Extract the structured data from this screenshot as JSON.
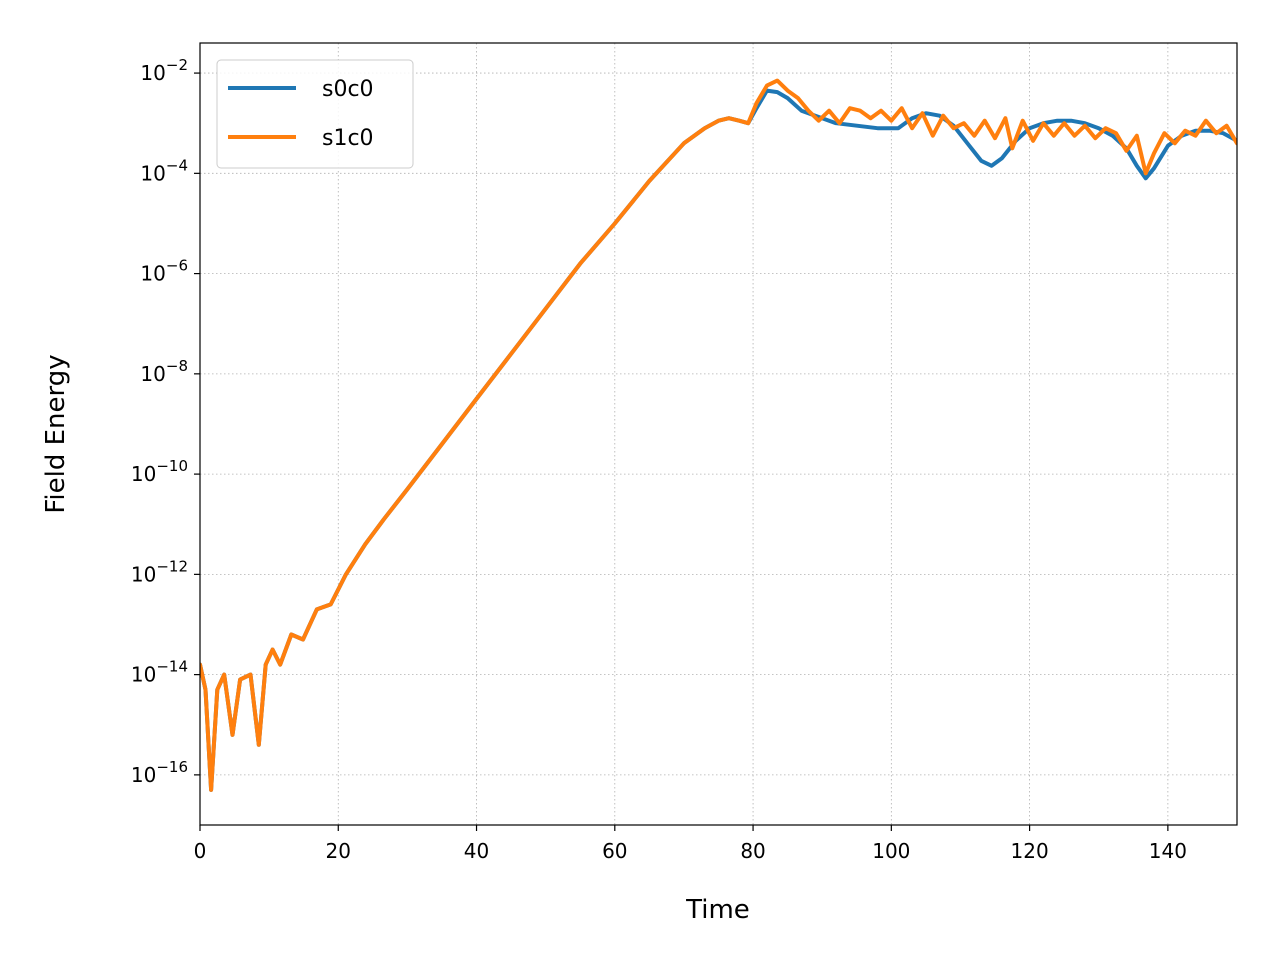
{
  "chart_data": {
    "type": "line",
    "title": "",
    "xlabel": "Time",
    "ylabel": "Field Energy",
    "xlim": [
      0,
      150
    ],
    "ylim_log10": [
      -17,
      -1.4
    ],
    "yscale": "log",
    "grid": true,
    "legend_position": "top-left",
    "x_ticks": [
      {
        "value": 0,
        "label": "0"
      },
      {
        "value": 20,
        "label": "20"
      },
      {
        "value": 40,
        "label": "40"
      },
      {
        "value": 60,
        "label": "60"
      },
      {
        "value": 80,
        "label": "80"
      },
      {
        "value": 100,
        "label": "100"
      },
      {
        "value": 120,
        "label": "120"
      },
      {
        "value": 140,
        "label": "140"
      }
    ],
    "y_ticks": [
      {
        "exp": -16,
        "base": "10",
        "sup": "−16"
      },
      {
        "exp": -14,
        "base": "10",
        "sup": "−14"
      },
      {
        "exp": -12,
        "base": "10",
        "sup": "−12"
      },
      {
        "exp": -10,
        "base": "10",
        "sup": "−10"
      },
      {
        "exp": -8,
        "base": "10",
        "sup": "−8"
      },
      {
        "exp": -6,
        "base": "10",
        "sup": "−6"
      },
      {
        "exp": -4,
        "base": "10",
        "sup": "−4"
      },
      {
        "exp": -2,
        "base": "10",
        "sup": "−2"
      }
    ],
    "series": [
      {
        "name": "s0c0",
        "color": "#1f77b4",
        "x": [
          0,
          0.8,
          1.6,
          2.5,
          3.5,
          4.7,
          5.8,
          7.3,
          8.5,
          9.5,
          10.5,
          11.6,
          13.2,
          14.9,
          16.9,
          18.9,
          21.1,
          23.9,
          26.6,
          30,
          35,
          40,
          45,
          50,
          55,
          60,
          65,
          70,
          73,
          75,
          76.5,
          78,
          79.3,
          80.5,
          82,
          83.5,
          85,
          87,
          89,
          92,
          95,
          98,
          101,
          103,
          105,
          107,
          109,
          111,
          113,
          114.5,
          116,
          118,
          120,
          122,
          124,
          126,
          128,
          130,
          132,
          134,
          135.5,
          136.8,
          138,
          140,
          142,
          144,
          146,
          148,
          150
        ],
        "y_log10": [
          -13.8,
          -14.3,
          -16.3,
          -14.3,
          -14.0,
          -15.2,
          -14.1,
          -14.0,
          -15.4,
          -13.8,
          -13.5,
          -13.8,
          -13.2,
          -13.3,
          -12.7,
          -12.6,
          -12.0,
          -11.4,
          -10.9,
          -10.3,
          -9.4,
          -8.5,
          -7.6,
          -6.7,
          -5.8,
          -5.0,
          -4.15,
          -3.4,
          -3.1,
          -2.95,
          -2.9,
          -2.95,
          -3.0,
          -2.7,
          -2.35,
          -2.38,
          -2.5,
          -2.75,
          -2.85,
          -3.0,
          -3.05,
          -3.1,
          -3.1,
          -2.9,
          -2.8,
          -2.85,
          -3.05,
          -3.4,
          -3.75,
          -3.85,
          -3.7,
          -3.35,
          -3.1,
          -3.0,
          -2.95,
          -2.95,
          -3.0,
          -3.1,
          -3.25,
          -3.5,
          -3.85,
          -4.1,
          -3.9,
          -3.45,
          -3.25,
          -3.15,
          -3.15,
          -3.2,
          -3.35
        ]
      },
      {
        "name": "s1c0",
        "color": "#ff7f0e",
        "x": [
          0,
          0.8,
          1.6,
          2.5,
          3.5,
          4.7,
          5.8,
          7.3,
          8.5,
          9.5,
          10.5,
          11.6,
          13.2,
          14.9,
          16.9,
          18.9,
          21.1,
          23.9,
          26.6,
          30,
          35,
          40,
          45,
          50,
          55,
          60,
          65,
          70,
          73,
          75,
          76.5,
          78,
          79.3,
          80.5,
          82,
          83.5,
          85,
          86.5,
          88,
          89.5,
          91,
          92.5,
          94,
          95.5,
          97,
          98.5,
          100,
          101.5,
          103,
          104.5,
          106,
          107.5,
          109,
          110.5,
          112,
          113.5,
          115,
          116.5,
          117.5,
          119,
          120.5,
          122,
          123.5,
          125,
          126.5,
          128,
          129.5,
          131,
          132.5,
          134,
          135.5,
          136.8,
          138,
          139.5,
          141,
          142.5,
          144,
          145.5,
          147,
          148.5,
          150
        ],
        "y_log10": [
          -13.8,
          -14.3,
          -16.3,
          -14.3,
          -14.0,
          -15.2,
          -14.1,
          -14.0,
          -15.4,
          -13.8,
          -13.5,
          -13.8,
          -13.2,
          -13.3,
          -12.7,
          -12.6,
          -12.0,
          -11.4,
          -10.9,
          -10.3,
          -9.4,
          -8.5,
          -7.6,
          -6.7,
          -5.8,
          -5.0,
          -4.15,
          -3.4,
          -3.1,
          -2.95,
          -2.9,
          -2.95,
          -3.0,
          -2.6,
          -2.25,
          -2.15,
          -2.35,
          -2.5,
          -2.75,
          -2.95,
          -2.75,
          -3.0,
          -2.7,
          -2.75,
          -2.9,
          -2.75,
          -2.95,
          -2.7,
          -3.1,
          -2.8,
          -3.25,
          -2.85,
          -3.1,
          -3.0,
          -3.25,
          -2.95,
          -3.3,
          -2.9,
          -3.5,
          -2.95,
          -3.35,
          -3.0,
          -3.25,
          -3.0,
          -3.25,
          -3.05,
          -3.3,
          -3.1,
          -3.2,
          -3.55,
          -3.25,
          -4.0,
          -3.6,
          -3.2,
          -3.4,
          -3.15,
          -3.25,
          -2.95,
          -3.2,
          -3.05,
          -3.4
        ]
      }
    ]
  }
}
